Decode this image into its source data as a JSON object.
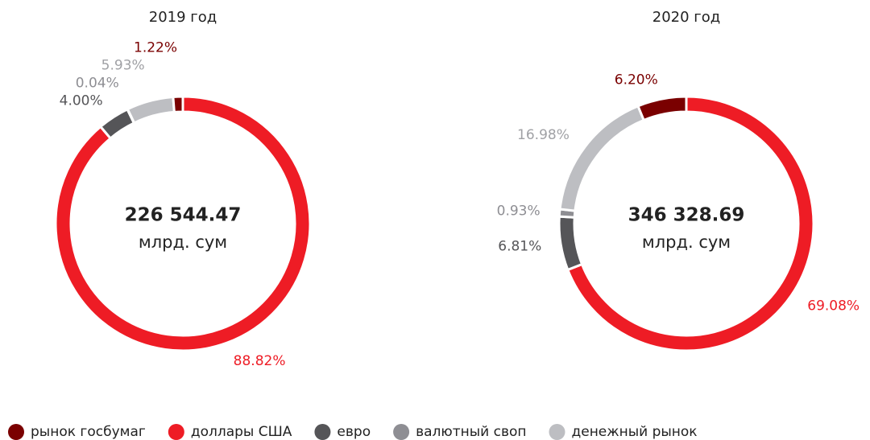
{
  "chart_data": [
    {
      "type": "donut",
      "title": "2019 год",
      "center_value": "226 544.47",
      "center_unit": "млрд. сум",
      "categories": [
        "доллары США",
        "евро",
        "валютный своп",
        "денежный рынок",
        "рынок госбумаг"
      ],
      "values": [
        88.82,
        4.0,
        0.04,
        5.93,
        1.22
      ],
      "value_labels": [
        "88.82%",
        "4.00%",
        "0.04%",
        "5.93%",
        "1.22%"
      ],
      "colors": [
        "#ee1c25",
        "#555558",
        "#8e8e93",
        "#bdbec2",
        "#7a0000"
      ]
    },
    {
      "type": "donut",
      "title": "2020 год",
      "center_value": "346 328.69",
      "center_unit": "млрд. сум",
      "categories": [
        "доллары США",
        "евро",
        "валютный своп",
        "денежный рынок",
        "рынок госбумаг"
      ],
      "values": [
        69.08,
        6.81,
        0.93,
        16.98,
        6.2
      ],
      "value_labels": [
        "69.08%",
        "6.81%",
        "0.93%",
        "16.98%",
        "6.20%"
      ],
      "colors": [
        "#ee1c25",
        "#555558",
        "#8e8e93",
        "#bdbec2",
        "#7a0000"
      ]
    }
  ],
  "legend": {
    "items": [
      "рынок госбумаг",
      "доллары США",
      "евро",
      "валютный своп",
      "денежный рынок"
    ],
    "colors": [
      "#7a0000",
      "#ee1c25",
      "#555558",
      "#8e8e93",
      "#bdbec2"
    ]
  }
}
